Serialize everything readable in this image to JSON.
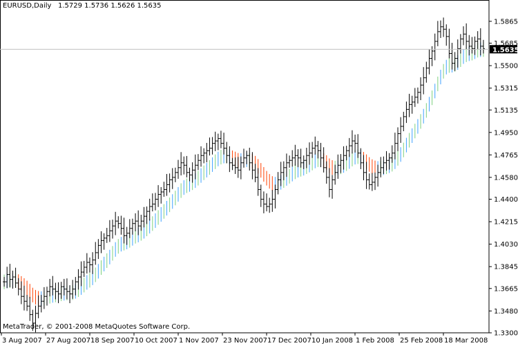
{
  "header": {
    "symbol": "EURUSD,Daily",
    "ohlc": "1.5729 1.5736 1.5626 1.5635"
  },
  "footer": {
    "copyright": "MetaTrader, © 2001-2008 MetaQuotes Software Corp."
  },
  "colors": {
    "background": "#ffffff",
    "bars": "#000000",
    "grid_line": "#c0c0c0",
    "price_label_bg": "#000000",
    "price_label_text": "#ffffff",
    "indicator_up_start": "#3fa0ff",
    "indicator_up_end": "#7dd07d",
    "indicator_down": "#ff4000"
  },
  "chart_data": {
    "type": "ohlc",
    "title": "EURUSD,Daily",
    "current_price": 1.5635,
    "current_price_label": "1.5635",
    "ylim": [
      1.33,
      1.5995
    ],
    "y_ticks": [
      "1.5865",
      "1.5685",
      "1.5500",
      "1.5315",
      "1.5135",
      "1.4950",
      "1.4765",
      "1.4580",
      "1.4400",
      "1.4215",
      "1.4030",
      "1.3845",
      "1.3665",
      "1.3480",
      "1.3300"
    ],
    "x_ticks": [
      "3 Aug 2007",
      "27 Aug 2007",
      "18 Sep 2007",
      "10 Oct 2007",
      "1 Nov 2007",
      "23 Nov 2007",
      "17 Dec 2007",
      "10 Jan 2008",
      "1 Feb 2008",
      "25 Feb 2008",
      "18 Mar 2008"
    ],
    "bar_spacing_note": "daily bars, ~16 per x tick",
    "bars_close": [
      1.372,
      1.378,
      1.374,
      1.376,
      1.371,
      1.366,
      1.36,
      1.356,
      1.352,
      1.345,
      1.338,
      1.346,
      1.352,
      1.356,
      1.36,
      1.364,
      1.368,
      1.366,
      1.364,
      1.362,
      1.368,
      1.366,
      1.364,
      1.362,
      1.366,
      1.372,
      1.376,
      1.38,
      1.384,
      1.388,
      1.386,
      1.39,
      1.396,
      1.402,
      1.406,
      1.408,
      1.41,
      1.414,
      1.418,
      1.422,
      1.42,
      1.416,
      1.41,
      1.412,
      1.416,
      1.42,
      1.422,
      1.418,
      1.422,
      1.426,
      1.43,
      1.434,
      1.436,
      1.44,
      1.444,
      1.446,
      1.448,
      1.452,
      1.456,
      1.458,
      1.462,
      1.466,
      1.47,
      1.468,
      1.462,
      1.46,
      1.464,
      1.468,
      1.472,
      1.476,
      1.478,
      1.48,
      1.482,
      1.486,
      1.488,
      1.49,
      1.486,
      1.482,
      1.476,
      1.47,
      1.468,
      1.466,
      1.464,
      1.47,
      1.474,
      1.476,
      1.47,
      1.464,
      1.458,
      1.448,
      1.44,
      1.436,
      1.434,
      1.436,
      1.44,
      1.448,
      1.456,
      1.462,
      1.466,
      1.47,
      1.472,
      1.474,
      1.476,
      1.474,
      1.47,
      1.472,
      1.476,
      1.478,
      1.482,
      1.484,
      1.48,
      1.474,
      1.466,
      1.458,
      1.448,
      1.456,
      1.462,
      1.468,
      1.472,
      1.476,
      1.48,
      1.484,
      1.488,
      1.486,
      1.478,
      1.47,
      1.462,
      1.456,
      1.452,
      1.454,
      1.458,
      1.462,
      1.466,
      1.47,
      1.472,
      1.474,
      1.478,
      1.486,
      1.494,
      1.5,
      1.508,
      1.514,
      1.518,
      1.52,
      1.524,
      1.528,
      1.534,
      1.54,
      1.548,
      1.556,
      1.562,
      1.57,
      1.578,
      1.582,
      1.58,
      1.574,
      1.56,
      1.552,
      1.556,
      1.564,
      1.572,
      1.576,
      1.57,
      1.566,
      1.564,
      1.57,
      1.572,
      1.566,
      1.564
    ]
  }
}
